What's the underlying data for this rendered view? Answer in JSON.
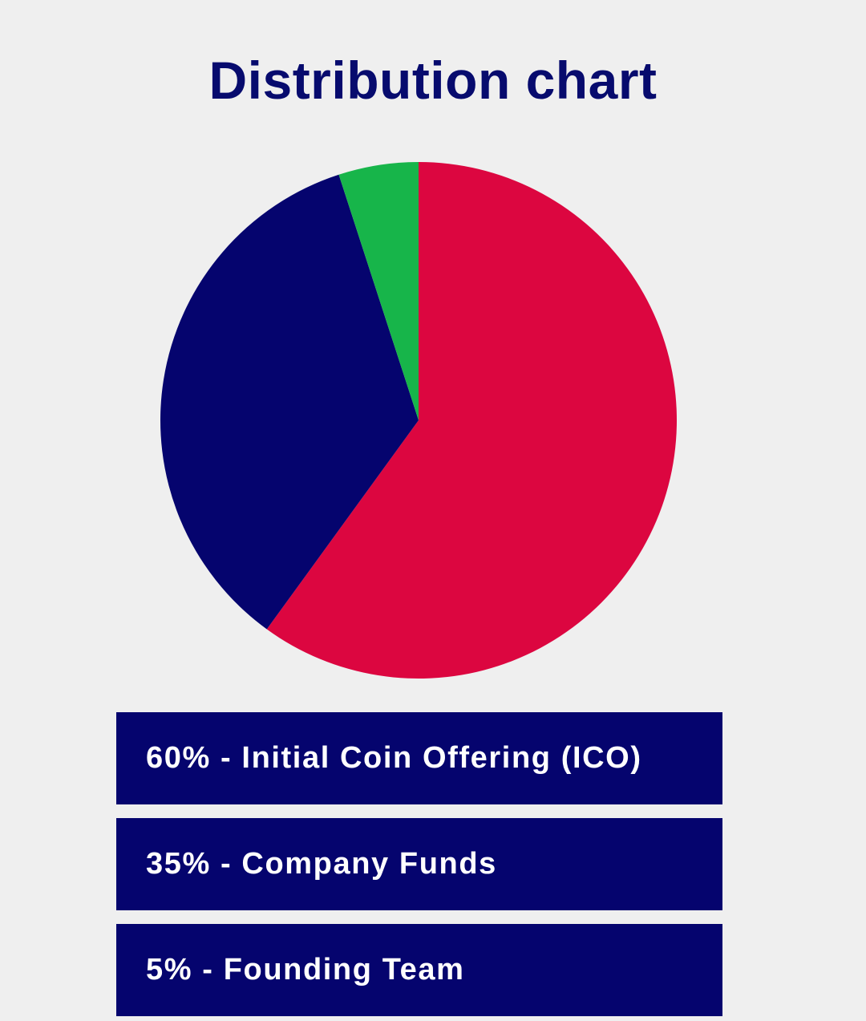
{
  "chart_data": {
    "type": "pie",
    "title": "Distribution chart",
    "slices": [
      {
        "label": "Initial Coin Offering (ICO)",
        "value": 60,
        "color": "#dc0640"
      },
      {
        "label": "Company Funds",
        "value": 35,
        "color": "#05046e"
      },
      {
        "label": "Founding Team",
        "value": 5,
        "color": "#17b54a"
      }
    ],
    "start_angle": "12 o'clock",
    "direction": "clockwise"
  },
  "legend": {
    "items": [
      {
        "text": "60% - Initial Coin Offering (ICO)"
      },
      {
        "text": "35% - Company Funds"
      },
      {
        "text": "5% - Founding Team"
      }
    ],
    "background_color": "#05046e",
    "text_color": "#ffffff"
  },
  "colors": {
    "background": "#efefef",
    "title": "#070b6e"
  }
}
